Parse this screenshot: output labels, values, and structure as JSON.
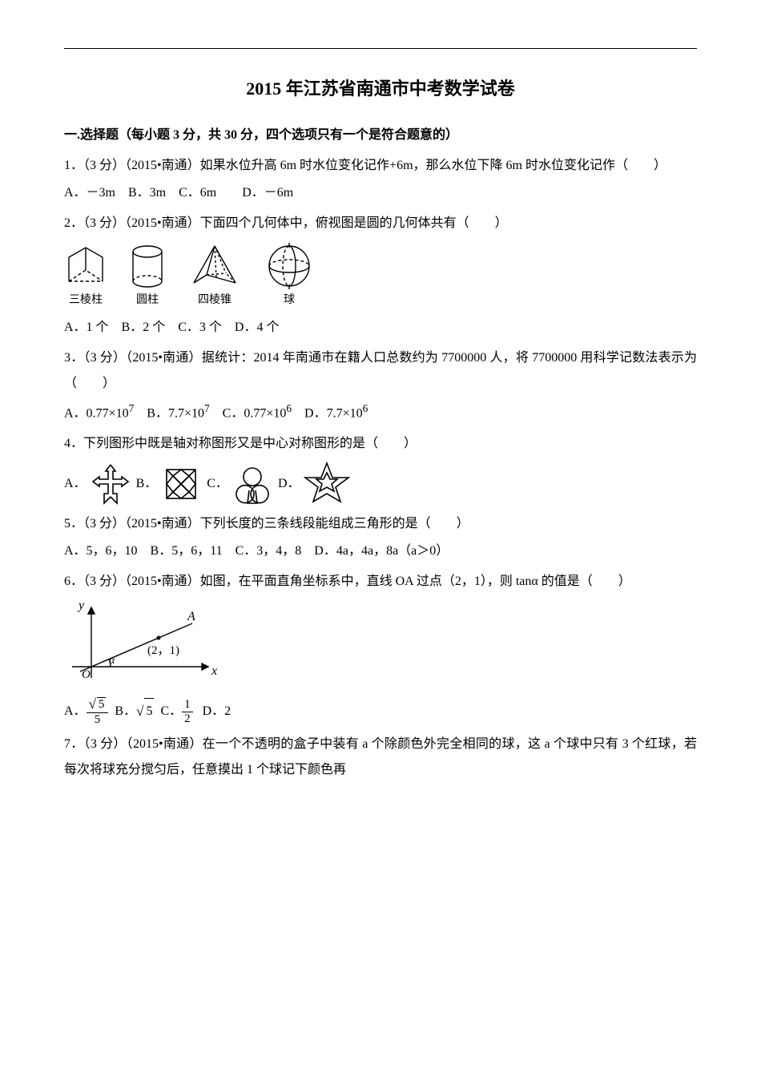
{
  "title": "2015 年江苏省南通市中考数学试卷",
  "section1_header": "一.选择题（每小题 3 分，共 30 分，四个选项只有一个是符合题意的）",
  "q1": {
    "stem": "1．（3 分）（2015•南通）如果水位升高 6m 时水位变化记作+6m，那么水位下降 6m 时水位变化记作（　　）",
    "opts": "A．－3m　B．3m　C．6m　　D．－6m"
  },
  "q2": {
    "stem": "2．（3 分）（2015•南通）下面四个几何体中，俯视图是圆的几何体共有（　　）",
    "labels": {
      "prism": "三棱柱",
      "cylinder": "圆柱",
      "pyramid": "四棱锥",
      "sphere": "球"
    },
    "opts": "A．1 个　B．2 个　C．3 个　D．4 个"
  },
  "q3": {
    "stem": "3．（3 分）（2015•南通）据统计：2014 年南通市在籍人口总数约为 7700000 人，将 7700000 用科学记数法表示为（　　）",
    "opts_html": "A．0.77×10<sup>7</sup>　B．7.7×10<sup>7</sup>　C．0.77×10<sup>6</sup>　D．7.7×10<sup>6</sup>"
  },
  "q4": {
    "stem": "4．下列图形中既是轴对称图形又是中心对称图形的是（　　）",
    "A": "A．",
    "B": "B．",
    "C": "C．",
    "D": "D．"
  },
  "q5": {
    "stem": "5．（3 分）（2015•南通）下列长度的三条线段能组成三角形的是（　　）",
    "opts": "A．5，6，10　B．5，6，11　C．3，4，8　D．4a，4a，8a（a＞0）"
  },
  "q6": {
    "stem": "6．（3 分）（2015•南通）如图，在平面直角坐标系中，直线 OA 过点（2，1），则 tanα 的值是（　　）",
    "fig": {
      "y": "y",
      "x": "x",
      "O": "O",
      "A": "A",
      "pt": "(2，1)",
      "alpha": "α"
    },
    "A_pre": "A．",
    "B_pre": "B．",
    "C_pre": "C．",
    "D_pre": "D．2",
    "sqrt5": "5",
    "one": "1",
    "two": "2",
    "five": "5"
  },
  "q7": {
    "stem": "7．（3 分）（2015•南通）在一个不透明的盒子中装有 a 个除颜色外完全相同的球，这 a 个球中只有 3 个红球，若每次将球充分搅匀后，任意摸出 1 个球记下颜色再"
  },
  "colors": {
    "stroke": "#000000",
    "dash": "4,3"
  }
}
